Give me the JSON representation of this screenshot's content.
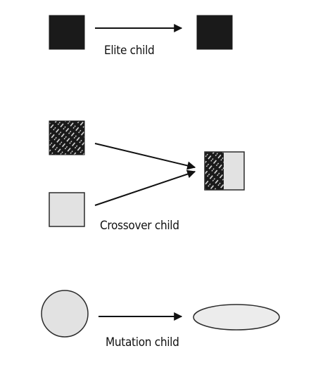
{
  "captions": {
    "elite": "Elite child",
    "crossover": "Crossover child",
    "mutation": "Mutation child"
  },
  "colors": {
    "dark": "#1a1a1a",
    "light_fill": "#e2e2e2",
    "outline": "#2b2b2b",
    "arrow": "#111111",
    "background": "#ffffff"
  }
}
